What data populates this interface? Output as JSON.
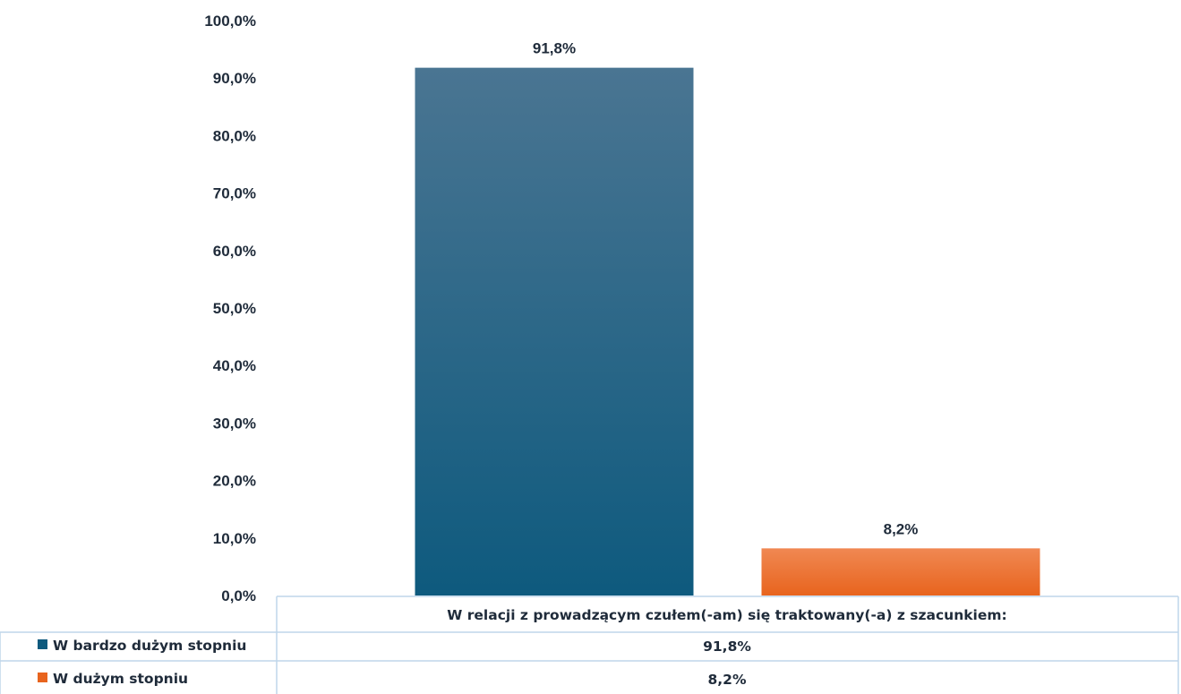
{
  "chart_data": {
    "type": "bar",
    "categories": [
      "W relacji z prowadzącym czułem(-am) się traktowany(-a) z szacunkiem:"
    ],
    "series": [
      {
        "name": "W bardzo dużym stopniu",
        "values": [
          91.8
        ],
        "label": "91,8%",
        "color": "#0e5a7e",
        "color_light": "#4a7592"
      },
      {
        "name": "W dużym stopniu",
        "values": [
          8.2
        ],
        "label": "8,2%",
        "color": "#e8641e",
        "color_light": "#f08852"
      }
    ],
    "y_ticks": [
      "0,0%",
      "10,0%",
      "20,0%",
      "30,0%",
      "40,0%",
      "50,0%",
      "60,0%",
      "70,0%",
      "80,0%",
      "90,0%",
      "100,0%"
    ],
    "ylim": [
      0,
      100
    ],
    "title": "",
    "xlabel": "",
    "ylabel": "",
    "grid": false,
    "legend": "data-table",
    "data_table": {
      "header": "W relacji z prowadzącym czułem(-am) się traktowany(-a) z szacunkiem:",
      "rows": [
        {
          "key": "W bardzo dużym stopniu",
          "value": "91,8%"
        },
        {
          "key": "W dużym stopniu",
          "value": "8,2%"
        }
      ]
    }
  }
}
